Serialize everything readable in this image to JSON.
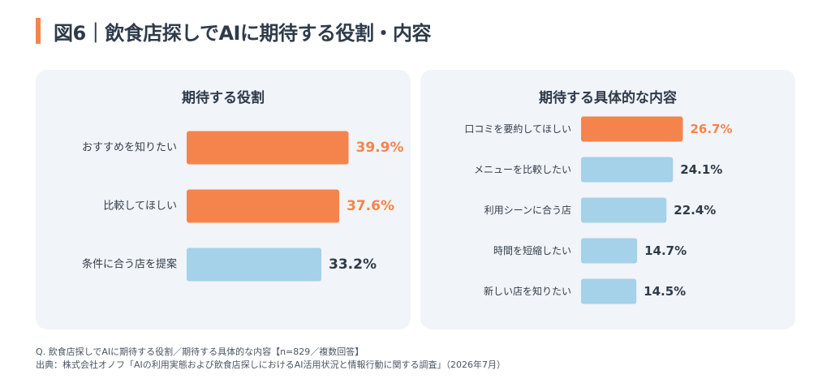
{
  "header": {
    "title": "図6｜飲食店探しでAIに期待する役割・内容"
  },
  "colors": {
    "accent": "#f5844c",
    "highlight_bar": "#f5844c",
    "normal_bar": "#a5d1e9",
    "highlight_text": "#f5844c",
    "normal_text": "#2f3b4a",
    "panel_bg": "#f1f4f8"
  },
  "chart_data": [
    {
      "type": "bar",
      "orientation": "horizontal",
      "title": "期待する役割",
      "unit": "%",
      "categories": [
        "おすすめを知りたい",
        "比較してほしい",
        "条件に合う店を提案"
      ],
      "values": [
        39.9,
        37.6,
        33.2
      ],
      "value_labels": [
        "39.9%",
        "37.6%",
        "33.2%"
      ],
      "highlighted": [
        true,
        true,
        false
      ]
    },
    {
      "type": "bar",
      "orientation": "horizontal",
      "title": "期待する具体的な内容",
      "unit": "%",
      "categories": [
        "口コミを要約してほしい",
        "メニューを比較したい",
        "利用シーンに合う店",
        "時間を短縮したい",
        "新しい店を知りたい"
      ],
      "values": [
        26.7,
        24.1,
        22.4,
        14.7,
        14.5
      ],
      "value_labels": [
        "26.7%",
        "24.1%",
        "22.4%",
        "14.7%",
        "14.5%"
      ],
      "highlighted": [
        true,
        false,
        false,
        false,
        false
      ]
    }
  ],
  "footnotes": {
    "question": "Q. 飲食店探しでAIに期待する役割／期待する具体的な内容【n=829／複数回答】",
    "source": "出典：株式会社オノフ「AIの利用実態および飲食店探しにおけるAI活用状況と情報行動に関する調査」（2026年7月）"
  }
}
